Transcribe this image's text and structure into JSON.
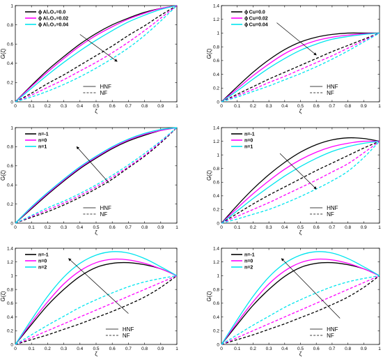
{
  "colors": {
    "black": "#000000",
    "magenta": "#ff00ff",
    "cyan": "#00e5ee"
  },
  "chart_data": [
    {
      "type": "line",
      "xlabel": "ζ",
      "ylabel": "G(ζ)",
      "xlim": [
        0,
        1
      ],
      "ylim": [
        0,
        1
      ],
      "xticks": [
        "0",
        "0.1",
        "0.2",
        "0.3",
        "0.4",
        "0.5",
        "0.6",
        "0.7",
        "0.8",
        "0.9",
        "1"
      ],
      "yticks": [
        "0",
        "0.2",
        "0.4",
        "0.6",
        "0.8",
        "1"
      ],
      "legend_top": {
        "position": "top-left",
        "entries": [
          "ϕ Al₂O₃=0.0",
          "ϕ Al₂O₃=0.02",
          "ϕ Al₂O₃=0.04"
        ]
      },
      "legend_bottom": {
        "position": "bottom-center",
        "entries": [
          "HNF",
          "NF"
        ]
      },
      "x": [
        0,
        0.1,
        0.2,
        0.3,
        0.4,
        0.5,
        0.6,
        0.7,
        0.8,
        0.9,
        1
      ],
      "series": [
        {
          "name": "ϕ Al₂O₃=0.0 HNF",
          "color": "black",
          "dash": false,
          "values": [
            0,
            0.17,
            0.33,
            0.47,
            0.6,
            0.71,
            0.8,
            0.87,
            0.93,
            0.97,
            1
          ]
        },
        {
          "name": "ϕ Al₂O₃=0.02 HNF",
          "color": "magenta",
          "dash": false,
          "values": [
            0,
            0.16,
            0.31,
            0.45,
            0.58,
            0.69,
            0.78,
            0.86,
            0.92,
            0.97,
            1
          ]
        },
        {
          "name": "ϕ Al₂O₃=0.04 HNF",
          "color": "cyan",
          "dash": false,
          "values": [
            0,
            0.14,
            0.28,
            0.41,
            0.53,
            0.64,
            0.74,
            0.83,
            0.9,
            0.96,
            1
          ]
        },
        {
          "name": "ϕ Al₂O₃=0.0 NF",
          "color": "black",
          "dash": true,
          "values": [
            0,
            0.09,
            0.19,
            0.28,
            0.38,
            0.48,
            0.58,
            0.69,
            0.79,
            0.9,
            1
          ]
        },
        {
          "name": "ϕ Al₂O₃=0.02 NF",
          "color": "magenta",
          "dash": true,
          "values": [
            0,
            0.07,
            0.15,
            0.23,
            0.32,
            0.41,
            0.51,
            0.62,
            0.74,
            0.87,
            1
          ]
        },
        {
          "name": "ϕ Al₂O₃=0.04 NF",
          "color": "cyan",
          "dash": true,
          "values": [
            0,
            0.05,
            0.11,
            0.18,
            0.26,
            0.35,
            0.45,
            0.56,
            0.69,
            0.84,
            1
          ]
        }
      ],
      "arrow": {
        "from": [
          0.4,
          0.7
        ],
        "to": [
          0.63,
          0.42
        ]
      }
    },
    {
      "type": "line",
      "xlabel": "ζ",
      "ylabel": "G(ζ)",
      "xlim": [
        0,
        1
      ],
      "ylim": [
        0,
        1.4
      ],
      "xticks": [
        "0",
        "0.1",
        "0.2",
        "0.3",
        "0.4",
        "0.5",
        "0.6",
        "0.7",
        "0.8",
        "0.9",
        "1"
      ],
      "yticks": [
        "0",
        "0.2",
        "0.4",
        "0.6",
        "0.8",
        "1",
        "1.2",
        "1.4"
      ],
      "legend_top": {
        "position": "top-left",
        "entries": [
          "ϕ Cu=0.0",
          "ϕ Cu=0.02",
          "ϕ Cu=0.04"
        ]
      },
      "legend_bottom": {
        "position": "bottom-right",
        "entries": [
          "HNF",
          "NF"
        ]
      },
      "x": [
        0,
        0.1,
        0.2,
        0.3,
        0.4,
        0.5,
        0.6,
        0.7,
        0.8,
        0.9,
        1
      ],
      "series": [
        {
          "name": "ϕ Cu=0.0 HNF",
          "color": "black",
          "dash": false,
          "values": [
            0,
            0.22,
            0.43,
            0.61,
            0.76,
            0.87,
            0.94,
            0.98,
            1.0,
            1.0,
            1
          ]
        },
        {
          "name": "ϕ Cu=0.02 HNF",
          "color": "magenta",
          "dash": false,
          "values": [
            0,
            0.19,
            0.38,
            0.55,
            0.7,
            0.81,
            0.89,
            0.94,
            0.97,
            0.99,
            1
          ]
        },
        {
          "name": "ϕ Cu=0.04 HNF",
          "color": "cyan",
          "dash": false,
          "values": [
            0,
            0.16,
            0.33,
            0.49,
            0.63,
            0.75,
            0.84,
            0.91,
            0.95,
            0.98,
            1
          ]
        },
        {
          "name": "ϕ Cu=0.0 NF",
          "color": "black",
          "dash": true,
          "values": [
            0,
            0.11,
            0.22,
            0.33,
            0.43,
            0.53,
            0.63,
            0.73,
            0.82,
            0.91,
            1
          ]
        },
        {
          "name": "ϕ Cu=0.02 NF",
          "color": "magenta",
          "dash": true,
          "values": [
            0,
            0.09,
            0.18,
            0.28,
            0.37,
            0.47,
            0.57,
            0.67,
            0.78,
            0.89,
            1
          ]
        },
        {
          "name": "ϕ Cu=0.04 NF",
          "color": "cyan",
          "dash": true,
          "values": [
            0,
            0.07,
            0.15,
            0.23,
            0.32,
            0.41,
            0.51,
            0.62,
            0.74,
            0.87,
            1
          ]
        }
      ],
      "arrow": {
        "from": [
          0.35,
          1.15
        ],
        "to": [
          0.6,
          0.68
        ]
      }
    },
    {
      "type": "line",
      "xlabel": "ζ",
      "ylabel": "G(ζ)",
      "xlim": [
        0,
        1
      ],
      "ylim": [
        0,
        1
      ],
      "xticks": [
        "0",
        "0.1",
        "0.2",
        "0.3",
        "0.4",
        "0.5",
        "0.6",
        "0.7",
        "0.8",
        "0.9",
        "1"
      ],
      "yticks": [
        "0",
        "0.2",
        "0.4",
        "0.6",
        "0.8",
        "1"
      ],
      "legend_top": {
        "position": "top-left",
        "entries": [
          "n=-1",
          "n=0",
          "n=1"
        ]
      },
      "legend_bottom": {
        "position": "bottom-center",
        "entries": [
          "HNF",
          "NF"
        ]
      },
      "x": [
        0,
        0.1,
        0.2,
        0.3,
        0.4,
        0.5,
        0.6,
        0.7,
        0.8,
        0.9,
        1
      ],
      "series": [
        {
          "name": "n=-1 HNF",
          "color": "black",
          "dash": false,
          "values": [
            0,
            0.15,
            0.3,
            0.44,
            0.57,
            0.68,
            0.78,
            0.86,
            0.92,
            0.97,
            1
          ]
        },
        {
          "name": "n=0 HNF",
          "color": "magenta",
          "dash": false,
          "values": [
            0,
            0.16,
            0.31,
            0.45,
            0.58,
            0.69,
            0.79,
            0.87,
            0.93,
            0.97,
            1
          ]
        },
        {
          "name": "n=1 HNF",
          "color": "cyan",
          "dash": false,
          "values": [
            0,
            0.17,
            0.32,
            0.46,
            0.59,
            0.7,
            0.8,
            0.88,
            0.94,
            0.98,
            1
          ]
        },
        {
          "name": "n=-1 NF",
          "color": "black",
          "dash": true,
          "values": [
            0,
            0.06,
            0.12,
            0.19,
            0.27,
            0.36,
            0.46,
            0.58,
            0.7,
            0.84,
            1
          ]
        },
        {
          "name": "n=0 NF",
          "color": "magenta",
          "dash": true,
          "values": [
            0,
            0.07,
            0.14,
            0.21,
            0.29,
            0.38,
            0.48,
            0.59,
            0.71,
            0.85,
            1
          ]
        },
        {
          "name": "n=1 NF",
          "color": "cyan",
          "dash": true,
          "values": [
            0,
            0.08,
            0.16,
            0.23,
            0.31,
            0.4,
            0.5,
            0.61,
            0.73,
            0.86,
            1
          ]
        }
      ],
      "arrow": {
        "from": [
          0.58,
          0.42
        ],
        "to": [
          0.38,
          0.8
        ]
      }
    },
    {
      "type": "line",
      "xlabel": "ζ",
      "ylabel": "G(ζ)",
      "xlim": [
        0,
        1
      ],
      "ylim": [
        0,
        1.4
      ],
      "xticks": [
        "0",
        "0.1",
        "0.2",
        "0.3",
        "0.4",
        "0.5",
        "0.6",
        "0.7",
        "0.8",
        "0.9",
        "1"
      ],
      "yticks": [
        "0",
        "0.2",
        "0.4",
        "0.6",
        "0.8",
        "1",
        "1.2",
        "1.4"
      ],
      "legend_top": {
        "position": "top-left",
        "entries": [
          "n=-1",
          "n=0",
          "n=1"
        ]
      },
      "legend_bottom": {
        "position": "bottom-right",
        "entries": [
          "HNF",
          "NF"
        ]
      },
      "x": [
        0,
        0.1,
        0.2,
        0.3,
        0.4,
        0.5,
        0.6,
        0.7,
        0.8,
        0.9,
        1
      ],
      "series": [
        {
          "name": "n=-1 HNF",
          "color": "black",
          "dash": false,
          "values": [
            0,
            0.26,
            0.5,
            0.71,
            0.89,
            1.04,
            1.15,
            1.22,
            1.25,
            1.24,
            1.2
          ]
        },
        {
          "name": "n=0 HNF",
          "color": "magenta",
          "dash": false,
          "values": [
            0,
            0.22,
            0.43,
            0.62,
            0.79,
            0.93,
            1.04,
            1.12,
            1.17,
            1.2,
            1.2
          ]
        },
        {
          "name": "n=1 HNF",
          "color": "cyan",
          "dash": false,
          "values": [
            0,
            0.18,
            0.36,
            0.53,
            0.69,
            0.83,
            0.95,
            1.05,
            1.12,
            1.17,
            1.2
          ]
        },
        {
          "name": "n=-1 NF",
          "color": "black",
          "dash": true,
          "values": [
            0,
            0.14,
            0.28,
            0.41,
            0.53,
            0.65,
            0.77,
            0.88,
            0.99,
            1.1,
            1.2
          ]
        },
        {
          "name": "n=0 NF",
          "color": "magenta",
          "dash": true,
          "values": [
            0,
            0.1,
            0.2,
            0.3,
            0.41,
            0.52,
            0.63,
            0.75,
            0.87,
            1.03,
            1.2
          ]
        },
        {
          "name": "n=1 NF",
          "color": "cyan",
          "dash": true,
          "values": [
            0,
            0.06,
            0.13,
            0.2,
            0.29,
            0.39,
            0.5,
            0.62,
            0.76,
            0.96,
            1.2
          ]
        }
      ],
      "arrow": {
        "from": [
          0.37,
          1.02
        ],
        "to": [
          0.6,
          0.5
        ]
      }
    },
    {
      "type": "line",
      "xlabel": "ζ",
      "ylabel": "G(ζ)",
      "xlim": [
        0,
        1
      ],
      "ylim": [
        0,
        1.4
      ],
      "xticks": [
        "0",
        "0.1",
        "0.2",
        "0.3",
        "0.4",
        "0.5",
        "0.6",
        "0.7",
        "0.8",
        "0.9",
        "1"
      ],
      "yticks": [
        "0",
        "0.2",
        "0.4",
        "0.6",
        "0.8",
        "1",
        "1.2",
        "1.4"
      ],
      "legend_top": {
        "position": "top-left",
        "entries": [
          "n=-1",
          "n=0",
          "n=2"
        ]
      },
      "legend_bottom": {
        "position": "bottom-right",
        "entries": [
          "HNF",
          "NF"
        ]
      },
      "x": [
        0,
        0.1,
        0.2,
        0.3,
        0.4,
        0.5,
        0.6,
        0.7,
        0.8,
        0.9,
        1
      ],
      "series": [
        {
          "name": "n=-1 HNF",
          "color": "black",
          "dash": false,
          "values": [
            0,
            0.29,
            0.57,
            0.8,
            0.99,
            1.12,
            1.18,
            1.19,
            1.16,
            1.1,
            1.0
          ]
        },
        {
          "name": "n=0 HNF",
          "color": "magenta",
          "dash": false,
          "values": [
            0,
            0.32,
            0.62,
            0.88,
            1.07,
            1.19,
            1.24,
            1.23,
            1.18,
            1.1,
            1.0
          ]
        },
        {
          "name": "n=2 HNF",
          "color": "cyan",
          "dash": false,
          "values": [
            0,
            0.36,
            0.7,
            0.98,
            1.18,
            1.3,
            1.35,
            1.33,
            1.25,
            1.13,
            1.0
          ]
        },
        {
          "name": "n=-1 NF",
          "color": "black",
          "dash": true,
          "values": [
            0,
            0.07,
            0.14,
            0.22,
            0.3,
            0.39,
            0.48,
            0.58,
            0.69,
            0.83,
            1.0
          ]
        },
        {
          "name": "n=0 NF",
          "color": "magenta",
          "dash": true,
          "values": [
            0,
            0.1,
            0.2,
            0.3,
            0.4,
            0.5,
            0.6,
            0.7,
            0.8,
            0.9,
            1.0
          ]
        },
        {
          "name": "n=2 NF",
          "color": "cyan",
          "dash": true,
          "values": [
            0,
            0.14,
            0.28,
            0.41,
            0.54,
            0.65,
            0.75,
            0.84,
            0.91,
            0.96,
            1.0
          ]
        }
      ],
      "arrow": {
        "from": [
          0.7,
          0.45
        ],
        "to": [
          0.33,
          1.25
        ]
      }
    },
    {
      "type": "line",
      "xlabel": "ζ",
      "ylabel": "G(ζ)",
      "xlim": [
        0,
        1
      ],
      "ylim": [
        0,
        1.4
      ],
      "xticks": [
        "0",
        "0.1",
        "0.2",
        "0.3",
        "0.4",
        "0.5",
        "0.6",
        "0.7",
        "0.8",
        "0.9",
        "1"
      ],
      "yticks": [
        "0",
        "0.2",
        "0.4",
        "0.6",
        "0.8",
        "1",
        "1.2",
        "1.4"
      ],
      "legend_top": {
        "position": "top-left",
        "entries": [
          "n=-1",
          "n=0",
          "n=2"
        ]
      },
      "legend_bottom": {
        "position": "bottom-right",
        "entries": [
          "HNF",
          "NF"
        ]
      },
      "x": [
        0,
        0.1,
        0.2,
        0.3,
        0.4,
        0.5,
        0.6,
        0.7,
        0.8,
        0.9,
        1
      ],
      "series": [
        {
          "name": "n=-1 HNF",
          "color": "black",
          "dash": false,
          "values": [
            0,
            0.29,
            0.57,
            0.8,
            0.99,
            1.12,
            1.18,
            1.19,
            1.16,
            1.1,
            1.0
          ]
        },
        {
          "name": "n=0 HNF",
          "color": "magenta",
          "dash": false,
          "values": [
            0,
            0.32,
            0.62,
            0.88,
            1.07,
            1.19,
            1.24,
            1.23,
            1.18,
            1.1,
            1.0
          ]
        },
        {
          "name": "n=2 HNF",
          "color": "cyan",
          "dash": false,
          "values": [
            0,
            0.36,
            0.7,
            0.98,
            1.18,
            1.3,
            1.35,
            1.33,
            1.25,
            1.13,
            1.0
          ]
        },
        {
          "name": "n=-1 NF",
          "color": "black",
          "dash": true,
          "values": [
            0,
            0.07,
            0.14,
            0.22,
            0.3,
            0.39,
            0.48,
            0.58,
            0.69,
            0.83,
            1.0
          ]
        },
        {
          "name": "n=0 NF",
          "color": "magenta",
          "dash": true,
          "values": [
            0,
            0.1,
            0.2,
            0.3,
            0.4,
            0.5,
            0.6,
            0.7,
            0.8,
            0.9,
            1.0
          ]
        },
        {
          "name": "n=2 NF",
          "color": "cyan",
          "dash": true,
          "values": [
            0,
            0.14,
            0.28,
            0.41,
            0.54,
            0.65,
            0.75,
            0.84,
            0.91,
            0.96,
            1.0
          ]
        }
      ],
      "arrow": {
        "from": [
          0.75,
          0.38
        ],
        "to": [
          0.38,
          1.25
        ]
      }
    }
  ]
}
